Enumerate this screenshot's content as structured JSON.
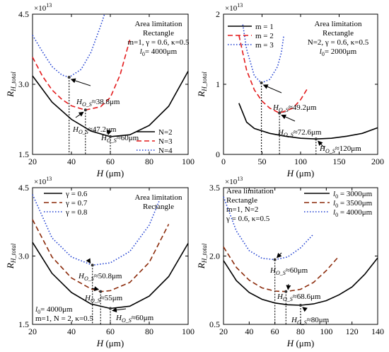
{
  "chart_data": [
    {
      "type": "line",
      "ylabel": "R_{H_total}",
      "xlabel": "H (μm)",
      "y_multiplier": "×10^13",
      "xlim": [
        20,
        100
      ],
      "ylim": [
        1.5,
        4.5
      ],
      "xticks": [
        "20",
        "40",
        "60",
        "80",
        "100"
      ],
      "yticks": [
        "1.5",
        "3.0",
        "4.5"
      ],
      "grid": false,
      "text_box": [
        "Area limitation",
        "Rectangle",
        "m=1, γ = 0.6, κ=0.5",
        "l0= 4000μm"
      ],
      "legend_position": "bottom-right",
      "series": [
        {
          "name": "N=2",
          "color": "#000000",
          "dash": "solid",
          "x": [
            20,
            30,
            40,
            50,
            60,
            70,
            80,
            90,
            100
          ],
          "y": [
            3.18,
            2.62,
            2.25,
            2.0,
            1.88,
            1.92,
            2.12,
            2.53,
            3.28
          ]
        },
        {
          "name": "N=3",
          "color": "#e31a1c",
          "dash": "dash",
          "x": [
            20,
            25,
            30,
            35,
            40,
            47.2,
            55,
            60,
            65,
            70
          ],
          "y": [
            3.58,
            3.18,
            2.88,
            2.68,
            2.54,
            2.45,
            2.52,
            2.72,
            3.2,
            3.95
          ]
        },
        {
          "name": "N=4",
          "color": "#1f3fd1",
          "dash": "dot",
          "x": [
            20,
            25,
            30,
            35,
            38.8,
            45,
            50,
            55,
            57
          ],
          "y": [
            4.05,
            3.7,
            3.38,
            3.2,
            3.15,
            3.32,
            3.68,
            4.25,
            4.5
          ]
        }
      ],
      "annotations": [
        {
          "label": "H_O_S≈38.8μm",
          "x": 38.8,
          "y": 3.15
        },
        {
          "label": "H_O_S≈47.2μm",
          "x": 47.2,
          "y": 2.45
        },
        {
          "label": "H_O_S≈60μm",
          "x": 60,
          "y": 1.88
        }
      ]
    },
    {
      "type": "line",
      "ylabel": "R_{H_total}",
      "xlabel": "H (μm)",
      "y_multiplier": "×10^13",
      "xlim": [
        0,
        200
      ],
      "ylim": [
        0,
        2
      ],
      "xticks": [
        "0",
        "50",
        "100",
        "150",
        "200"
      ],
      "yticks": [
        "0",
        "1",
        "2"
      ],
      "grid": false,
      "text_box": [
        "Area limitation",
        "Rectangle",
        "N=2, γ = 0.6, κ=0.5",
        "l0= 2000μm"
      ],
      "legend_position": "top-left",
      "series": [
        {
          "name": "m = 1",
          "color": "#000000",
          "dash": "solid",
          "x": [
            20,
            30,
            40,
            60,
            80,
            100,
            120,
            140,
            160,
            180,
            200
          ],
          "y": [
            0.73,
            0.46,
            0.37,
            0.3,
            0.26,
            0.23,
            0.22,
            0.23,
            0.26,
            0.3,
            0.38
          ]
        },
        {
          "name": "m = 2",
          "color": "#e31a1c",
          "dash": "dash",
          "x": [
            20,
            30,
            40,
            50,
            60,
            72.6,
            90,
            100,
            110
          ],
          "y": [
            1.7,
            1.2,
            0.92,
            0.76,
            0.66,
            0.59,
            0.66,
            0.78,
            0.96
          ]
        },
        {
          "name": "m = 3",
          "color": "#1f3fd1",
          "dash": "dot",
          "x": [
            25,
            30,
            40,
            49.2,
            60,
            70,
            75,
            78
          ],
          "y": [
            1.85,
            1.5,
            1.12,
            1.02,
            1.07,
            1.25,
            1.45,
            1.68
          ]
        }
      ],
      "annotations": [
        {
          "label": "H_O_S≈49.2μm",
          "x": 49.2,
          "y": 1.02
        },
        {
          "label": "H_O_S≈72.6μm",
          "x": 72.6,
          "y": 0.59
        },
        {
          "label": "H_O_S≈120μm",
          "x": 120,
          "y": 0.22
        }
      ]
    },
    {
      "type": "line",
      "ylabel": "R_{H_total}",
      "xlabel": "H (μm)",
      "y_multiplier": "×10^13",
      "xlim": [
        20,
        100
      ],
      "ylim": [
        1.5,
        4.5
      ],
      "xticks": [
        "20",
        "40",
        "60",
        "80",
        "100"
      ],
      "yticks": [
        "1.5",
        "3.0",
        "4.5"
      ],
      "grid": false,
      "text_box": [
        "Area limitation",
        "Rectangle"
      ],
      "text_box_2": [
        "l0= 4000μm",
        "m=1, N = 2, κ=0.5"
      ],
      "legend_position": "top-left",
      "series": [
        {
          "name": "γ = 0.6",
          "color": "#000000",
          "dash": "solid",
          "x": [
            20,
            30,
            40,
            50,
            60,
            70,
            80,
            90,
            100
          ],
          "y": [
            3.3,
            2.62,
            2.2,
            1.95,
            1.85,
            1.9,
            2.12,
            2.55,
            3.28
          ]
        },
        {
          "name": "γ = 0.7",
          "color": "#8b2a0a",
          "dash": "dash",
          "x": [
            20,
            30,
            40,
            50,
            55,
            60,
            70,
            80,
            90
          ],
          "y": [
            3.8,
            2.98,
            2.52,
            2.28,
            2.22,
            2.24,
            2.42,
            2.86,
            3.7
          ]
        },
        {
          "name": "γ = 0.8",
          "color": "#1f3fd1",
          "dash": "dot",
          "x": [
            20,
            30,
            40,
            50.8,
            60,
            70,
            80,
            85
          ],
          "y": [
            4.35,
            3.4,
            2.98,
            2.8,
            2.85,
            3.1,
            3.68,
            4.2
          ]
        }
      ],
      "annotations": [
        {
          "label": "H_O_S≈50.8μm",
          "x": 50.8,
          "y": 2.8
        },
        {
          "label": "H_O_S≈55μm",
          "x": 55,
          "y": 2.22
        },
        {
          "label": "H_O_S≈60μm",
          "x": 60,
          "y": 1.85
        }
      ]
    },
    {
      "type": "line",
      "ylabel": "R_{H_total}",
      "xlabel": "H (μm)",
      "y_multiplier": "×10^13",
      "xlim": [
        20,
        140
      ],
      "ylim": [
        0.5,
        3.5
      ],
      "xticks": [
        "20",
        "40",
        "60",
        "80",
        "100",
        "120",
        "140"
      ],
      "yticks": [
        "0.5",
        "2.0",
        "3.5"
      ],
      "grid": false,
      "text_box": [
        "Area limitation",
        "Rectangle",
        "m=1, N=2",
        "γ = 0.6, κ=0.5"
      ],
      "legend_position": "top-right",
      "series": [
        {
          "name": "l0 = 3000μm",
          "color": "#000000",
          "dash": "solid",
          "x": [
            20,
            30,
            40,
            50,
            60,
            70,
            80,
            90,
            100,
            110,
            120,
            130,
            140
          ],
          "y": [
            1.9,
            1.46,
            1.2,
            1.05,
            0.97,
            0.93,
            0.92,
            0.95,
            1.02,
            1.15,
            1.32,
            1.6,
            1.96
          ]
        },
        {
          "name": "l0 = 3500μm",
          "color": "#8b2a0a",
          "dash": "dash",
          "x": [
            20,
            30,
            40,
            50,
            60,
            68.6,
            80,
            90,
            100,
            110
          ],
          "y": [
            2.2,
            1.75,
            1.47,
            1.3,
            1.23,
            1.22,
            1.27,
            1.42,
            1.68,
            2.0
          ]
        },
        {
          "name": "l0 = 4000μm",
          "color": "#1f3fd1",
          "dash": "dot",
          "x": [
            20,
            30,
            40,
            50,
            60,
            70,
            80,
            90
          ],
          "y": [
            3.3,
            2.55,
            2.12,
            1.95,
            1.92,
            1.98,
            2.18,
            2.48
          ]
        }
      ],
      "annotations": [
        {
          "label": "H_O_S≈60μm",
          "x": 60,
          "y": 1.92
        },
        {
          "label": "H_O_S≈68.6μm",
          "x": 68.6,
          "y": 1.22
        },
        {
          "label": "H_O_S≈80μm",
          "x": 80,
          "y": 0.92
        }
      ]
    }
  ]
}
